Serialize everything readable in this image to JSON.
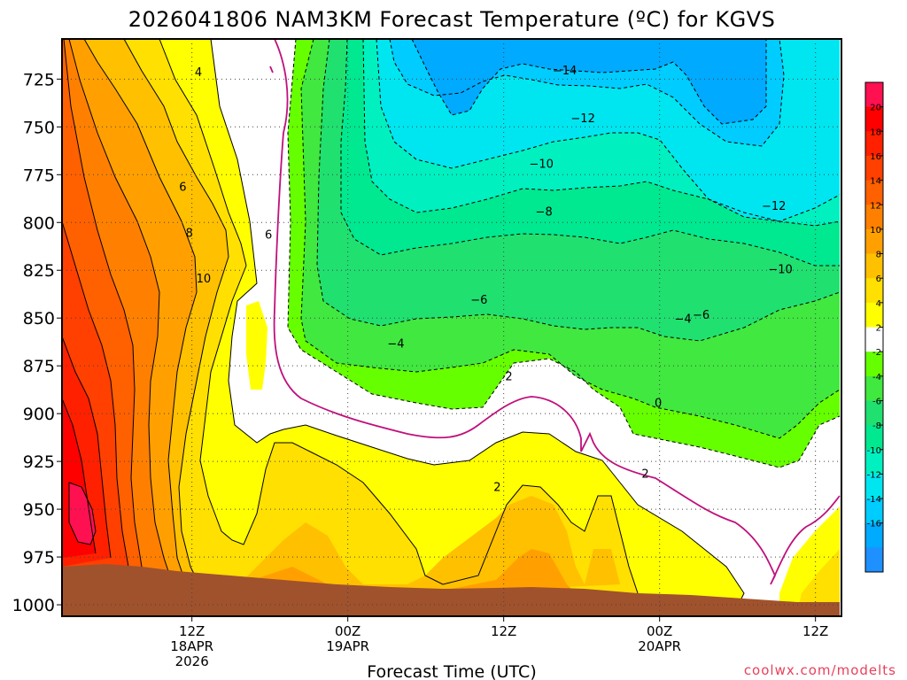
{
  "chart_data": {
    "type": "heatmap",
    "title": "2026041806 NAM3KM Forecast Temperature (ºC) for KGVS",
    "xlabel": "Forecast Time (UTC)",
    "ylabel": "",
    "credit": "coolwx.com/modelts",
    "x_range_hours": [
      -4,
      56
    ],
    "y_range_hpa": [
      704,
      1006
    ],
    "y_ticks": [
      {
        "value": 725,
        "label": "725"
      },
      {
        "value": 750,
        "label": "750"
      },
      {
        "value": 775,
        "label": "775"
      },
      {
        "value": 800,
        "label": "800"
      },
      {
        "value": 825,
        "label": "825"
      },
      {
        "value": 850,
        "label": "850"
      },
      {
        "value": 875,
        "label": "875"
      },
      {
        "value": 900,
        "label": "900"
      },
      {
        "value": 925,
        "label": "925"
      },
      {
        "value": 950,
        "label": "950"
      },
      {
        "value": 975,
        "label": "975"
      },
      {
        "value": 1000,
        "label": "1000"
      }
    ],
    "x_ticks": [
      {
        "hour": 6,
        "lines": [
          "12Z",
          "18APR",
          "2026"
        ]
      },
      {
        "hour": 18,
        "lines": [
          "00Z",
          "19APR"
        ]
      },
      {
        "hour": 30,
        "lines": [
          "12Z"
        ]
      },
      {
        "hour": 42,
        "lines": [
          "00Z",
          "20APR"
        ]
      },
      {
        "hour": 54,
        "lines": [
          "12Z"
        ]
      }
    ],
    "colorbar": {
      "levels": [
        -18,
        -16,
        -14,
        -12,
        -10,
        -8,
        -6,
        -4,
        -2,
        2,
        4,
        6,
        8,
        10,
        12,
        14,
        16,
        18,
        20,
        22
      ],
      "colors": [
        "#1e90ff",
        "#00aaff",
        "#00ccff",
        "#00e6f0",
        "#00f0c0",
        "#00e890",
        "#20e070",
        "#40e840",
        "#66ff00",
        "#ffffff",
        "#ffff00",
        "#ffe000",
        "#ffc000",
        "#ffa000",
        "#ff8000",
        "#ff6000",
        "#ff4000",
        "#ff2000",
        "#ff0000",
        "#ff1050"
      ],
      "labels": [
        "-16",
        "-14",
        "-12",
        "-10",
        "-8",
        "-6",
        "-4",
        "-2",
        "2",
        "4",
        "6",
        "8",
        "10",
        "12",
        "14",
        "16",
        "18",
        "20"
      ]
    },
    "contour_labels": [
      {
        "text": "−14",
        "hour": 34.7,
        "hpa": 722
      },
      {
        "text": "−12",
        "hour": 36.1,
        "hpa": 747
      },
      {
        "text": "−12",
        "hour": 50.8,
        "hpa": 793
      },
      {
        "text": "−10",
        "hour": 32.9,
        "hpa": 771
      },
      {
        "text": "−10",
        "hour": 51.3,
        "hpa": 826
      },
      {
        "text": "−8",
        "hour": 33.1,
        "hpa": 796
      },
      {
        "text": "−6",
        "hour": 28.1,
        "hpa": 842
      },
      {
        "text": "−6",
        "hour": 45.2,
        "hpa": 850
      },
      {
        "text": "−4",
        "hour": 43.8,
        "hpa": 852
      },
      {
        "text": "−4",
        "hour": 21.7,
        "hpa": 865
      },
      {
        "text": "2",
        "hour": 30.4,
        "hpa": 882
      },
      {
        "text": "2",
        "hour": 29.5,
        "hpa": 940
      },
      {
        "text": "2",
        "hour": 40.9,
        "hpa": 933
      },
      {
        "text": "0",
        "hour": 41.9,
        "hpa": 896
      },
      {
        "text": "4",
        "hour": 6.5,
        "hpa": 723
      },
      {
        "text": "6",
        "hour": 5.3,
        "hpa": 783
      },
      {
        "text": "6",
        "hour": 11.9,
        "hpa": 808
      },
      {
        "text": "8",
        "hour": 5.8,
        "hpa": 807
      },
      {
        "text": "10",
        "hour": 6.9,
        "hpa": 831
      }
    ]
  }
}
